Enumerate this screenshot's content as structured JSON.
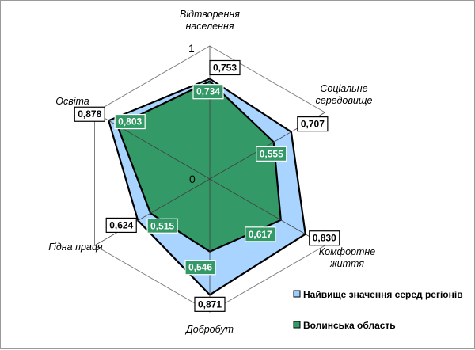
{
  "chart_data": {
    "type": "radar",
    "axes": [
      [
        "Відтворення",
        "населення"
      ],
      [
        "Соціальне",
        "середовище"
      ],
      [
        "Комфортне",
        "життя"
      ],
      [
        "Добробут"
      ],
      [
        "Гідна праця"
      ],
      [
        "Освіта"
      ]
    ],
    "rlim": [
      0,
      1
    ],
    "ticks": [
      "0",
      "1"
    ],
    "series": [
      {
        "name": "Найвище значення серед регіонів",
        "values": [
          0.753,
          0.707,
          0.83,
          0.871,
          0.624,
          0.878
        ],
        "labels": [
          "0,753",
          "0,707",
          "0,830",
          "0,871",
          "0,624",
          "0,878"
        ],
        "color": "#99ccff"
      },
      {
        "name": "Волинська область",
        "values": [
          0.734,
          0.555,
          0.617,
          0.546,
          0.515,
          0.803
        ],
        "labels": [
          "0,734",
          "0,555",
          "0,617",
          "0,546",
          "0,515",
          "0,803"
        ],
        "color": "#339966"
      }
    ],
    "grid": true,
    "legend": "bottom-right"
  }
}
